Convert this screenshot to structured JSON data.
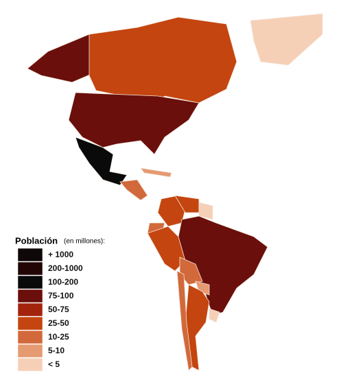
{
  "legend": {
    "title": "Población",
    "subtitle": "(en millones):",
    "items": [
      {
        "label": "+ 1000",
        "color": "#0f0808"
      },
      {
        "label": "200-1000",
        "color": "#220606"
      },
      {
        "label": "100-200",
        "color": "#0a0a0a"
      },
      {
        "label": "75-100",
        "color": "#6a0f0b"
      },
      {
        "label": "50-75",
        "color": "#a3230d"
      },
      {
        "label": "25-50",
        "color": "#c4450f"
      },
      {
        "label": "10-25",
        "color": "#d2693b"
      },
      {
        "label": "5-10",
        "color": "#e59a72"
      },
      {
        "label": "< 5",
        "color": "#f6d0b6"
      }
    ]
  }
}
